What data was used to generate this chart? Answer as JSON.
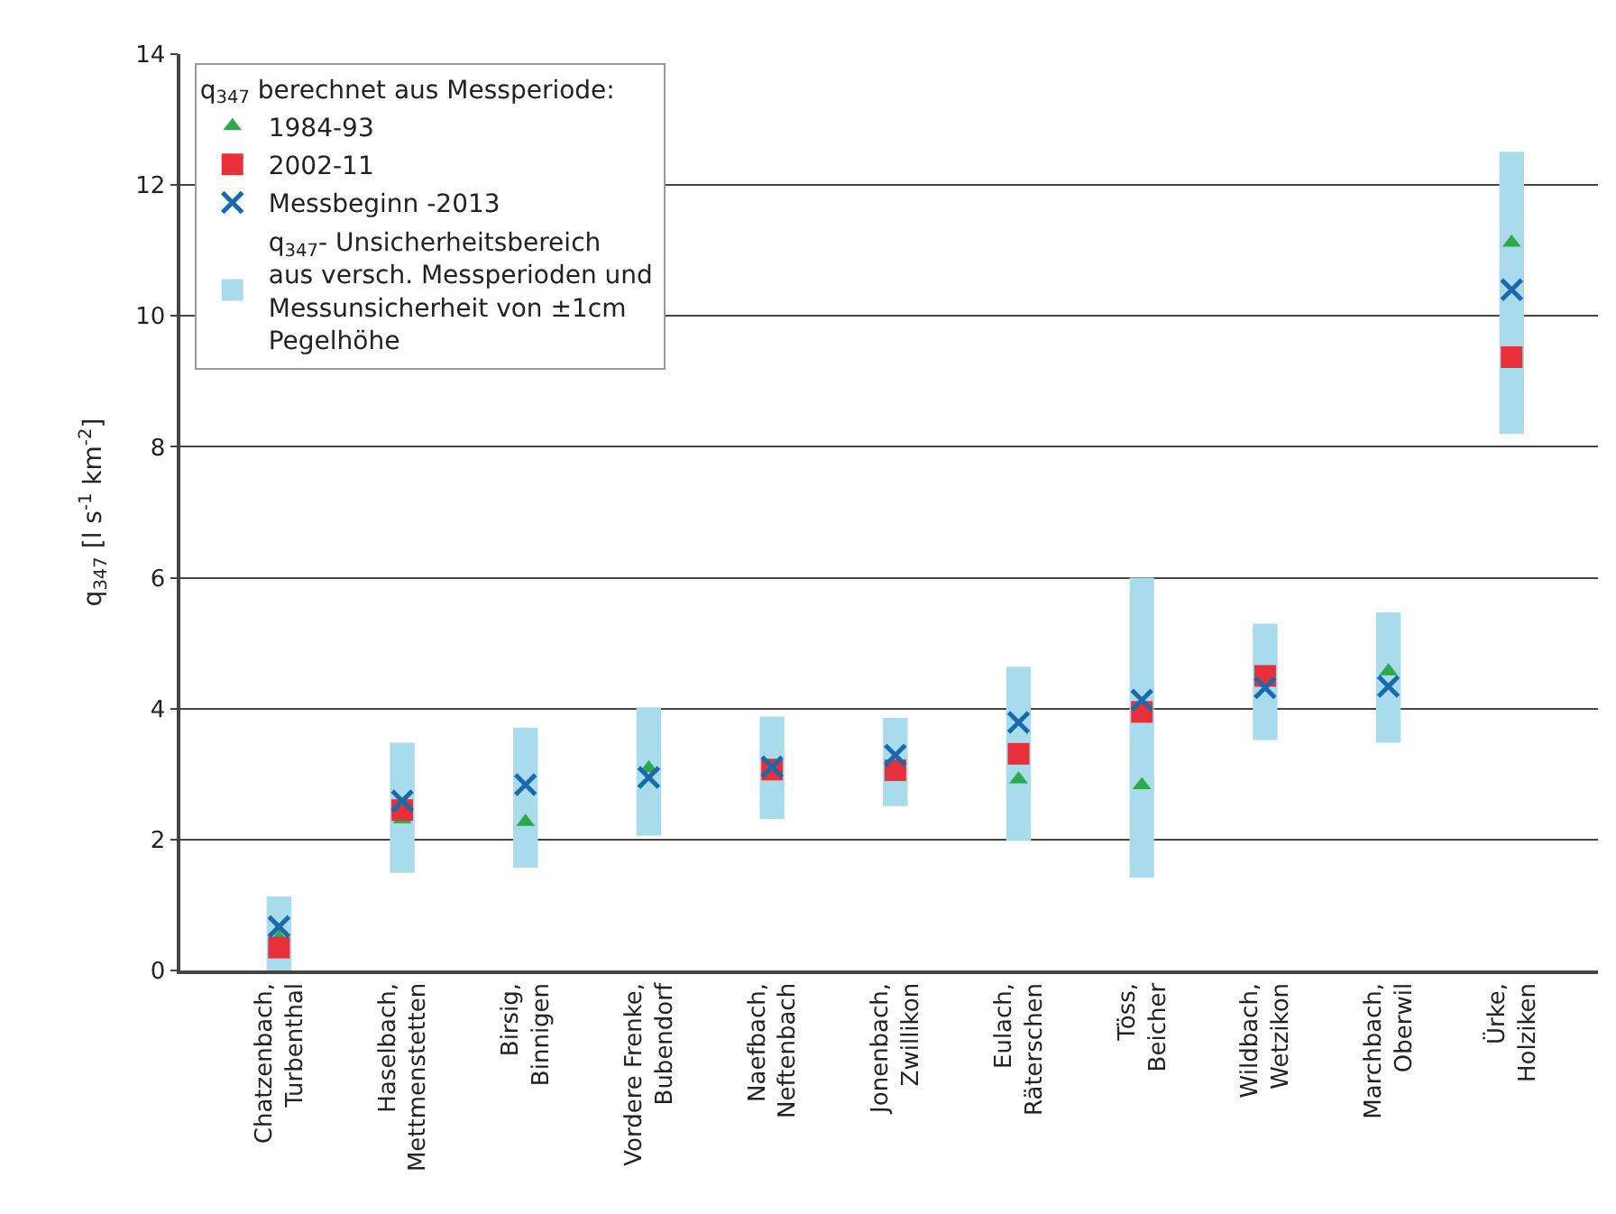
{
  "chart_data": {
    "type": "scatter",
    "ylabel": "q$_{347}$ [l s$^{-1}$ km$^{-2}$]",
    "legend_title": "q$_{347}$ berechnet aus Messperiode:",
    "categories": [
      "Chatzenbach, Turbenthal",
      "Haselbach, Mettmenstetten",
      "Birsig, Binnigen",
      "Vordere Frenke, Bubendorf",
      "Naefbach, Neftenbach",
      "Jonenbach, Zwillikon",
      "Eulach, Räterschen",
      "Töss, Beicher",
      "Wildbach, Wetzikon",
      "Marchbach, Oberwil",
      "Ürke, Holziken"
    ],
    "series": [
      {
        "type": "bar",
        "name": "q$_{347}$- Unsicherheitsbereich aus versch. Messperioden und Messunsicherheit von ±1cm Pegelhöhe",
        "color": "#a8dbec",
        "base": [
          0,
          1.49,
          1.57,
          2.06,
          2.31,
          2.51,
          1.98,
          1.42,
          3.52,
          3.48,
          8.2
        ],
        "values": [
          1.13,
          1.99,
          2.14,
          1.96,
          1.57,
          1.35,
          2.66,
          4.58,
          1.78,
          1.99,
          4.31
        ]
      },
      {
        "name": "1984-93",
        "color": "#2ea84a",
        "marker": "triangle",
        "values": [
          0.5,
          2.31,
          2.27,
          3.09,
          null,
          null,
          2.92,
          2.83,
          null,
          4.57,
          11.12
        ]
      },
      {
        "name": "2002-11",
        "color": "#e8303a",
        "marker": "square",
        "values": [
          0.35,
          2.45,
          null,
          null,
          3.07,
          3.06,
          3.31,
          3.95,
          4.5,
          null,
          9.37
        ]
      },
      {
        "name": "Messbeginn -2013",
        "color": "#1a6aab",
        "marker": "cross",
        "values": [
          0.67,
          2.59,
          2.84,
          2.95,
          3.11,
          3.29,
          3.79,
          4.13,
          4.32,
          4.34,
          10.4
        ]
      }
    ],
    "ylim": [
      0,
      14
    ],
    "yticks": [
      0,
      2,
      4,
      6,
      8,
      10,
      12,
      14
    ],
    "grid": "y",
    "legend": "top left"
  }
}
